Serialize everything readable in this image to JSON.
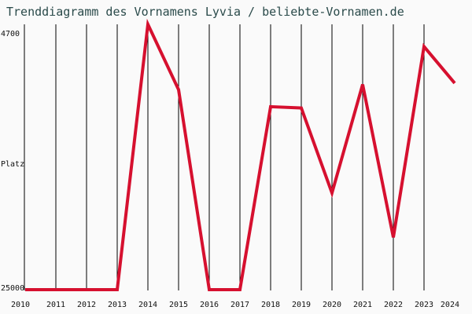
{
  "chart_data": {
    "type": "line",
    "title": "Trenddiagramm des Vornamens Lyvia / beliebte-Vornamen.de",
    "ylabel": "Platz",
    "y_top_label": "4700",
    "y_bottom_label": "25000",
    "ylim": [
      25000,
      4700
    ],
    "grid": "vertical",
    "line_color": "#d6102f",
    "categories": [
      "2010",
      "2011",
      "2012",
      "2013",
      "2014",
      "2015",
      "2016",
      "2017",
      "2018",
      "2019",
      "2020",
      "2021",
      "2022",
      "2023",
      "2024"
    ],
    "series": [
      {
        "values": [
          25000,
          25000,
          25000,
          25000,
          4700,
          9700,
          25000,
          25000,
          11000,
          11100,
          17600,
          9300,
          21000,
          6400,
          9200
        ]
      }
    ]
  }
}
